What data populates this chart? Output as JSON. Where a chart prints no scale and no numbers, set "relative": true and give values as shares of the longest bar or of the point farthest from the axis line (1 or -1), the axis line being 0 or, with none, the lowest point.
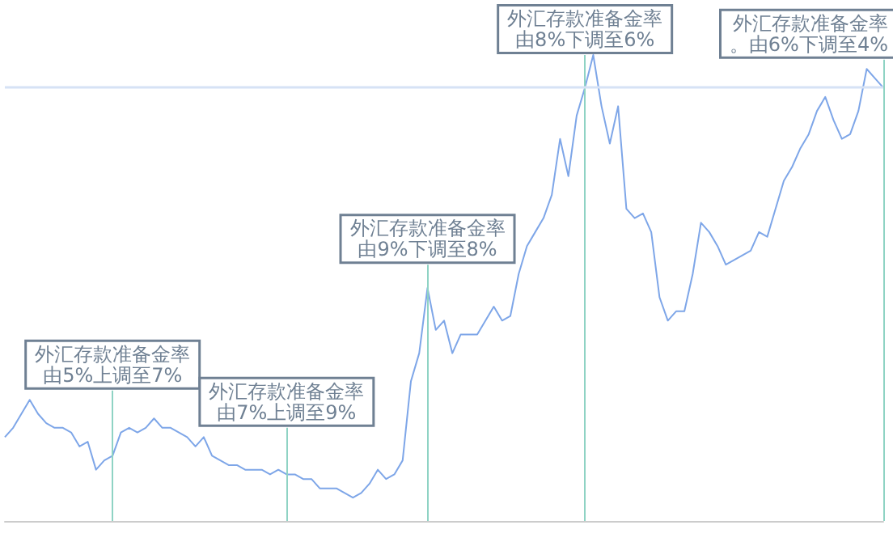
{
  "chart_data": {
    "type": "line",
    "relative": true,
    "grid": false,
    "line_style": "solid",
    "annotations": [
      "外汇存款准备金率由5%上调至7%",
      "外汇存款准备金率由7%上调至9%",
      "外汇存款准备金率由9%下调至8%",
      "外汇存款准备金率由8%下调至6%",
      "外汇存款准备金率。由6%下调至4%"
    ],
    "categories": [
      null,
      null,
      null,
      null,
      null,
      null,
      null,
      null,
      null,
      null,
      null,
      null,
      null,
      null,
      null,
      null,
      null,
      null,
      null,
      null,
      null,
      null,
      null,
      null,
      null,
      null,
      null,
      null,
      null,
      null,
      null,
      null,
      null,
      null,
      null,
      null,
      null,
      null,
      null,
      null,
      null,
      null,
      null,
      null,
      null,
      null,
      null,
      null,
      null,
      null,
      null,
      null,
      null,
      null,
      null,
      null,
      null,
      null,
      null,
      null,
      null,
      null,
      null,
      null,
      null,
      null,
      null,
      null,
      null,
      null,
      null,
      null,
      null,
      null,
      null,
      null,
      null,
      null,
      null,
      null,
      null,
      null,
      null,
      null,
      null,
      null,
      null,
      null,
      null,
      null,
      null,
      null,
      null,
      null,
      null,
      null,
      null,
      null,
      null,
      null,
      null,
      null,
      null,
      null,
      null,
      null,
      null
    ],
    "series": [
      {
        "color": "#7ea6e8",
        "values": [
          0.18,
          0.2,
          0.23,
          0.26,
          0.23,
          0.21,
          0.2,
          0.2,
          0.19,
          0.16,
          0.17,
          0.11,
          0.13,
          0.14,
          0.19,
          0.2,
          0.19,
          0.2,
          0.22,
          0.2,
          0.2,
          0.19,
          0.18,
          0.16,
          0.18,
          0.14,
          0.13,
          0.12,
          0.12,
          0.11,
          0.11,
          0.11,
          0.1,
          0.11,
          0.1,
          0.1,
          0.09,
          0.09,
          0.07,
          0.07,
          0.07,
          0.06,
          0.05,
          0.06,
          0.08,
          0.11,
          0.09,
          0.1,
          0.13,
          0.3,
          0.36,
          0.5,
          0.41,
          0.43,
          0.36,
          0.4,
          0.4,
          0.4,
          0.43,
          0.46,
          0.43,
          0.44,
          0.53,
          0.59,
          0.62,
          0.65,
          0.7,
          0.82,
          0.74,
          0.87,
          0.93,
          1.0,
          0.89,
          0.81,
          0.89,
          0.67,
          0.65,
          0.66,
          0.62,
          0.48,
          0.43,
          0.45,
          0.45,
          0.53,
          0.64,
          0.62,
          0.59,
          0.55,
          0.56,
          0.57,
          0.58,
          0.62,
          0.61,
          0.67,
          0.73,
          0.76,
          0.8,
          0.83,
          0.88,
          0.91,
          0.86,
          0.82,
          0.83,
          0.88,
          0.97,
          0.95,
          0.93
        ]
      }
    ],
    "ref_lines": [
      {
        "axis": "y",
        "value": 0.93,
        "color": "#d6e2f5"
      }
    ]
  }
}
